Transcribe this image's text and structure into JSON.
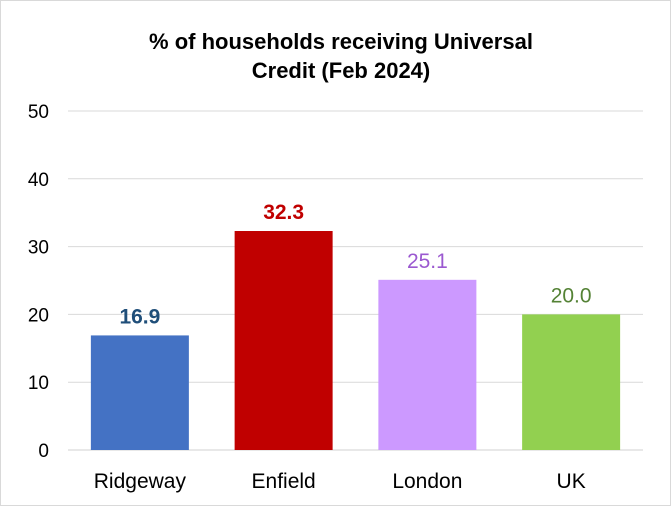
{
  "chart_data": {
    "type": "bar",
    "title": "% of households receiving Universal\nCredit (Feb 2024)",
    "categories": [
      "Ridgeway",
      "Enfield",
      "London",
      "UK"
    ],
    "values": [
      16.9,
      32.3,
      25.1,
      20.0
    ],
    "value_labels": [
      "16.9",
      "32.3",
      "25.1",
      "20.0"
    ],
    "bar_colors": [
      "#4472c4",
      "#c00000",
      "#cc99ff",
      "#92d050"
    ],
    "label_colors": [
      "#1f4e79",
      "#c00000",
      "#9b59d0",
      "#548235"
    ],
    "label_bold": [
      true,
      true,
      false,
      false
    ],
    "ylim": [
      0,
      50
    ],
    "yticks": [
      "0",
      "10",
      "20",
      "30",
      "40",
      "50"
    ],
    "grid": true,
    "legend": "none",
    "xlabel": "",
    "ylabel": ""
  }
}
